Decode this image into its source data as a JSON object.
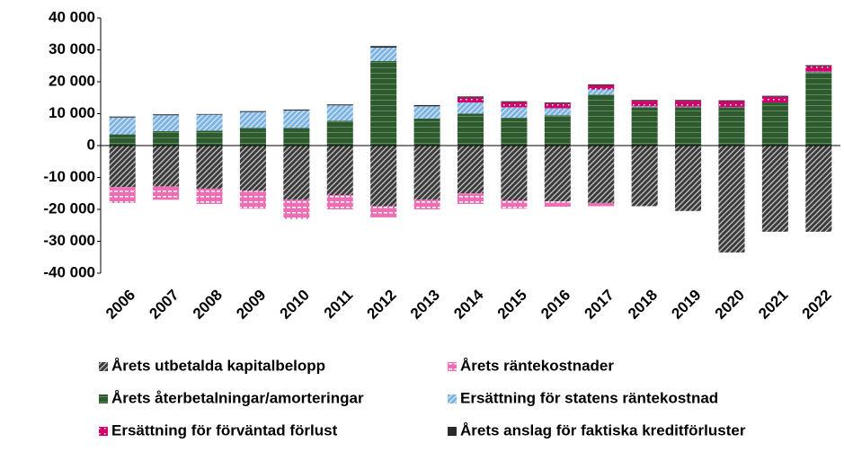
{
  "chart_data": {
    "type": "bar",
    "stacked": true,
    "categories": [
      "2006",
      "2007",
      "2008",
      "2009",
      "2010",
      "2011",
      "2012",
      "2013",
      "2014",
      "2015",
      "2016",
      "2017",
      "2018",
      "2019",
      "2020",
      "2021",
      "2022"
    ],
    "series": [
      {
        "name": "Årets utbetalda kapitalbelopp",
        "color": "#3c3c3c",
        "values": [
          -13000,
          -12800,
          -13500,
          -14200,
          -17000,
          -15500,
          -19000,
          -17000,
          -15000,
          -17200,
          -17500,
          -18000,
          -19000,
          -20500,
          -33500,
          -27000,
          -27000
        ]
      },
      {
        "name": "Årets räntekostnader",
        "color": "#ec6fb5",
        "values": [
          -5000,
          -4200,
          -4800,
          -5600,
          -6000,
          -4500,
          -3500,
          -3000,
          -3300,
          -2600,
          -1700,
          -1000,
          0,
          0,
          0,
          0,
          0
        ]
      },
      {
        "name": "Årets återbetalningar/amorteringar",
        "color": "#2f5a2f",
        "values": [
          3500,
          4500,
          4700,
          5500,
          5500,
          7800,
          26500,
          8500,
          10000,
          8700,
          9500,
          16000,
          12000,
          12000,
          12000,
          13500,
          23000
        ]
      },
      {
        "name": "Ersättning för statens räntekostnad",
        "color": "#7db3e2",
        "values": [
          5300,
          5000,
          5000,
          5000,
          5500,
          4800,
          4200,
          3800,
          3500,
          3300,
          2200,
          1600,
          300,
          200,
          100,
          0,
          200
        ]
      },
      {
        "name": "Ersättning för förväntad förlust",
        "color": "#d1006c",
        "values": [
          0,
          0,
          0,
          0,
          0,
          0,
          0,
          0,
          1500,
          1600,
          1500,
          1300,
          1700,
          1800,
          1800,
          1800,
          1700
        ]
      },
      {
        "name": "Årets anslag för faktiska kreditförluster",
        "color": "#2a2a2a",
        "values": [
          300,
          300,
          200,
          300,
          300,
          300,
          500,
          400,
          400,
          300,
          300,
          300,
          300,
          300,
          300,
          300,
          300
        ]
      }
    ],
    "ylim": [
      -40000,
      40000
    ],
    "yticks": [
      {
        "value": -40000,
        "label": "-40 000"
      },
      {
        "value": -30000,
        "label": "-30 000"
      },
      {
        "value": -20000,
        "label": "-20 000"
      },
      {
        "value": -10000,
        "label": "-10 000"
      },
      0,
      {
        "value": 10000,
        "label": "10 000"
      },
      {
        "value": 20000,
        "label": "20 000"
      },
      {
        "value": 30000,
        "label": "30 000"
      },
      {
        "value": 40000,
        "label": "40 000"
      }
    ],
    "legend": "bottom"
  }
}
